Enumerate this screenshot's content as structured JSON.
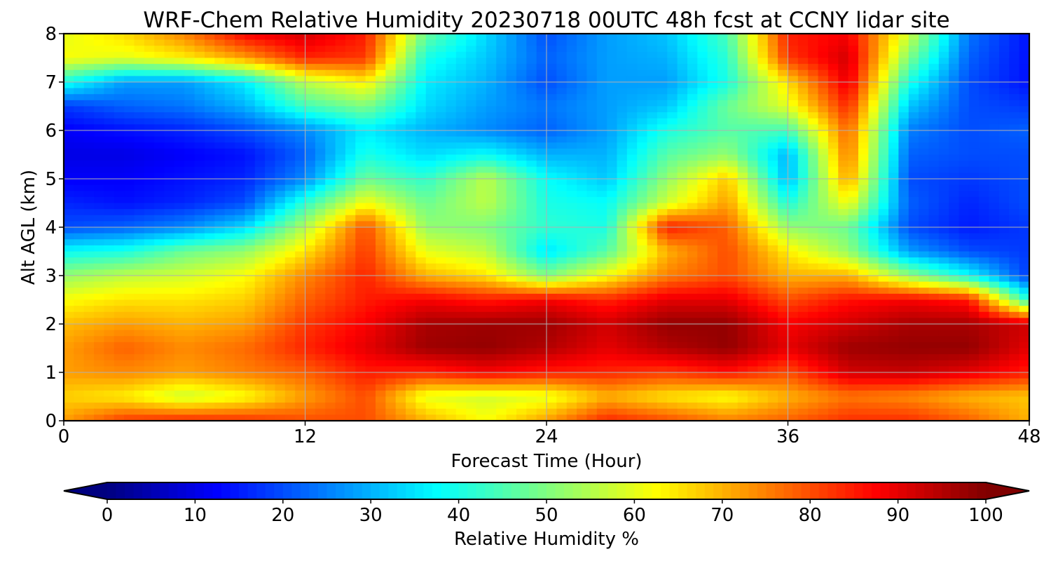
{
  "chart_data": {
    "type": "heatmap",
    "title": "WRF-Chem Relative Humidity 20230718 00UTC 48h fcst at CCNY lidar site",
    "xlabel": "Forecast Time (Hour)",
    "ylabel": "Alt AGL (km)",
    "xlim": [
      0,
      48
    ],
    "ylim": [
      0,
      8
    ],
    "xticks": [
      "0",
      "12",
      "24",
      "36",
      "48"
    ],
    "yticks": [
      "0",
      "1",
      "2",
      "3",
      "4",
      "5",
      "6",
      "7",
      "8"
    ],
    "grid": true,
    "colormap": "jet",
    "colorbar": {
      "label": "Relative Humidity %",
      "range": [
        0,
        100
      ],
      "ticks": [
        "0",
        "10",
        "20",
        "30",
        "40",
        "50",
        "60",
        "70",
        "80",
        "90",
        "100"
      ],
      "extend": "both",
      "orientation": "horizontal"
    },
    "x": [
      0,
      3,
      6,
      9,
      12,
      15,
      18,
      21,
      24,
      27,
      30,
      33,
      36,
      39,
      42,
      45,
      48
    ],
    "y": [
      0,
      0.5,
      1,
      1.5,
      2,
      2.5,
      3,
      3.5,
      4,
      4.5,
      5,
      5.5,
      6,
      6.5,
      7,
      7.5,
      8
    ],
    "z": [
      [
        72,
        82,
        84,
        83,
        80,
        80,
        70,
        62,
        72,
        84,
        80,
        75,
        78,
        83,
        83,
        78,
        70
      ],
      [
        67,
        64,
        57,
        62,
        72,
        80,
        60,
        58,
        60,
        70,
        65,
        62,
        70,
        76,
        74,
        70,
        68
      ],
      [
        72,
        74,
        72,
        75,
        78,
        85,
        84,
        88,
        85,
        84,
        82,
        86,
        80,
        92,
        93,
        90,
        85
      ],
      [
        72,
        78,
        74,
        77,
        84,
        90,
        97,
        98,
        95,
        90,
        95,
        98,
        90,
        97,
        98,
        98,
        90
      ],
      [
        69,
        72,
        70,
        72,
        82,
        88,
        96,
        97,
        97,
        92,
        98,
        98,
        88,
        92,
        96,
        96,
        92
      ],
      [
        62,
        65,
        65,
        67,
        78,
        85,
        88,
        85,
        88,
        84,
        90,
        90,
        80,
        86,
        88,
        85,
        40
      ],
      [
        52,
        56,
        58,
        62,
        74,
        84,
        70,
        65,
        50,
        62,
        75,
        80,
        70,
        70,
        52,
        38,
        18
      ],
      [
        38,
        40,
        48,
        52,
        65,
        82,
        60,
        56,
        35,
        46,
        70,
        80,
        64,
        52,
        28,
        20,
        18
      ],
      [
        20,
        22,
        26,
        34,
        55,
        80,
        52,
        50,
        42,
        40,
        85,
        78,
        52,
        48,
        20,
        15,
        18
      ],
      [
        16,
        14,
        16,
        20,
        42,
        62,
        48,
        56,
        40,
        38,
        58,
        72,
        40,
        62,
        22,
        16,
        20
      ],
      [
        12,
        12,
        14,
        16,
        26,
        48,
        42,
        56,
        38,
        32,
        52,
        68,
        30,
        72,
        20,
        18,
        20
      ],
      [
        10,
        10,
        12,
        14,
        22,
        40,
        34,
        38,
        30,
        30,
        46,
        52,
        30,
        76,
        22,
        20,
        20
      ],
      [
        12,
        14,
        16,
        20,
        26,
        36,
        30,
        26,
        22,
        28,
        40,
        46,
        44,
        78,
        25,
        20,
        22
      ],
      [
        18,
        22,
        24,
        30,
        44,
        50,
        34,
        28,
        24,
        28,
        32,
        48,
        60,
        84,
        32,
        20,
        18
      ],
      [
        40,
        28,
        28,
        36,
        56,
        64,
        36,
        30,
        20,
        28,
        28,
        40,
        66,
        90,
        40,
        20,
        14
      ],
      [
        62,
        60,
        64,
        72,
        84,
        82,
        40,
        32,
        22,
        28,
        30,
        42,
        82,
        92,
        50,
        22,
        14
      ],
      [
        60,
        66,
        75,
        88,
        92,
        85,
        48,
        34,
        20,
        28,
        32,
        45,
        85,
        88,
        58,
        24,
        14
      ]
    ]
  }
}
